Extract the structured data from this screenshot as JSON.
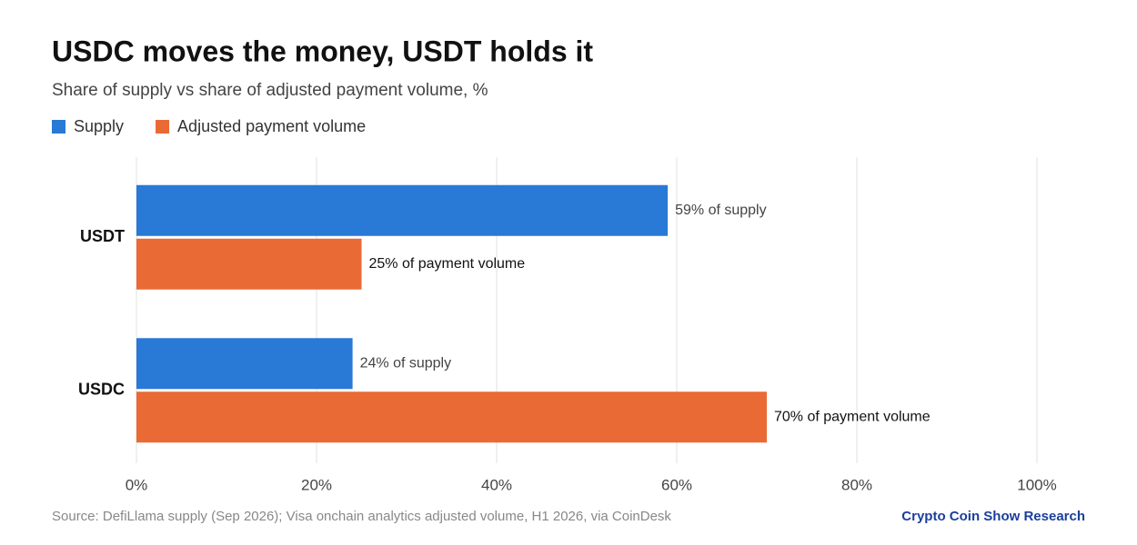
{
  "chart_data": {
    "type": "hbar",
    "title": "USDC moves the money, USDT holds it",
    "subtitle": "Share of supply vs share of adjusted payment volume, %",
    "categories": [
      "USDT",
      "USDC"
    ],
    "series": [
      {
        "name": "Supply",
        "color": "#2979d6",
        "values": [
          59,
          24
        ],
        "value_labels": [
          "59% of supply",
          "24% of supply"
        ]
      },
      {
        "name": "Adjusted payment volume",
        "color": "#ea6a35",
        "values": [
          25,
          70
        ],
        "value_labels": [
          "25% of payment volume",
          "70% of payment volume"
        ]
      }
    ],
    "xlim": [
      0,
      100
    ],
    "xticks": [
      {
        "value": 0,
        "label": "0%"
      },
      {
        "value": 20,
        "label": "20%"
      },
      {
        "value": 40,
        "label": "40%"
      },
      {
        "value": 60,
        "label": "60%"
      },
      {
        "value": 80,
        "label": "80%"
      },
      {
        "value": 100,
        "label": "100%"
      }
    ],
    "grid": true,
    "source": "Source: DefiLlama supply (Sep 2026); Visa onchain analytics adjusted volume, H1 2026, via CoinDesk",
    "credit": "Crypto Coin Show Research"
  }
}
